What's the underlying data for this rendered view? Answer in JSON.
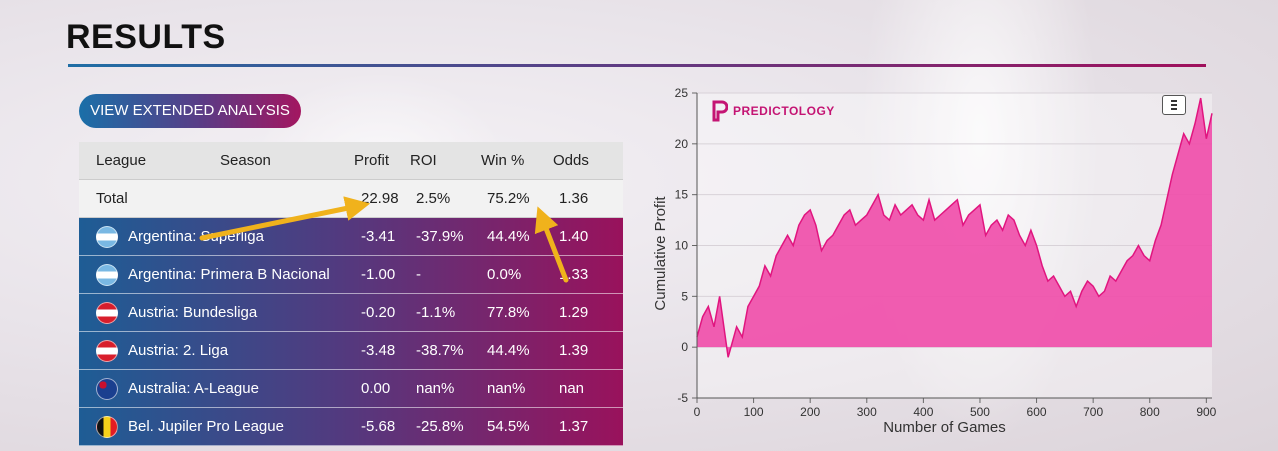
{
  "page": {
    "title": "RESULTS",
    "extended_button_label": "VIEW EXTENDED ANALYSIS"
  },
  "colors": {
    "accent_blue": "#1e5d95",
    "accent_magenta": "#99125c",
    "arrow": "#f0b21c",
    "chart_fill": "#f04ba8",
    "chart_line": "#e0157f"
  },
  "table": {
    "headers": {
      "league": "League",
      "season": "Season",
      "profit": "Profit",
      "roi": "ROI",
      "win": "Win %",
      "odds": "Odds"
    },
    "total": {
      "label": "Total",
      "profit": "22.98",
      "roi": "2.5%",
      "win": "75.2%",
      "odds": "1.36"
    },
    "rows": [
      {
        "flag": "flag-argentina",
        "league": "Argentina: Superliga",
        "profit": "-3.41",
        "roi": "-37.9%",
        "win": "44.4%",
        "odds": "1.40"
      },
      {
        "flag": "flag-argentina",
        "league": "Argentina: Primera B Nacional",
        "profit": "-1.00",
        "roi": "-",
        "win": "0.0%",
        "odds": "1.33"
      },
      {
        "flag": "flag-austria",
        "league": "Austria: Bundesliga",
        "profit": "-0.20",
        "roi": "-1.1%",
        "win": "77.8%",
        "odds": "1.29"
      },
      {
        "flag": "flag-austria",
        "league": "Austria: 2. Liga",
        "profit": "-3.48",
        "roi": "-38.7%",
        "win": "44.4%",
        "odds": "1.39"
      },
      {
        "flag": "flag-australia",
        "league": "Australia: A-League",
        "profit": "0.00",
        "roi": "nan%",
        "win": "nan%",
        "odds": "nan"
      },
      {
        "flag": "flag-belgium",
        "league": "Bel. Jupiler Pro League",
        "profit": "-5.68",
        "roi": "-25.8%",
        "win": "54.5%",
        "odds": "1.37"
      }
    ]
  },
  "chart": {
    "logo_text": "PREDICTOLOGY",
    "menu_icon": "hamburger-menu-icon"
  },
  "chart_data": {
    "type": "area",
    "xlabel": "Number of Games",
    "ylabel": "Cumulative Profit",
    "xlim": [
      0,
      910
    ],
    "ylim": [
      -5,
      25
    ],
    "xticks": [
      "0",
      "100",
      "200",
      "300",
      "400",
      "500",
      "600",
      "700",
      "800",
      "900"
    ],
    "yticks": [
      "-5",
      "0",
      "5",
      "10",
      "15",
      "20",
      "25"
    ],
    "grid": true,
    "x": [
      0,
      10,
      20,
      30,
      40,
      50,
      55,
      60,
      70,
      80,
      90,
      100,
      110,
      120,
      130,
      140,
      150,
      160,
      170,
      180,
      190,
      200,
      210,
      220,
      230,
      240,
      250,
      260,
      270,
      280,
      290,
      300,
      310,
      320,
      330,
      340,
      350,
      360,
      370,
      380,
      390,
      400,
      410,
      420,
      430,
      440,
      450,
      460,
      470,
      480,
      490,
      500,
      510,
      520,
      530,
      540,
      550,
      560,
      570,
      580,
      590,
      600,
      610,
      620,
      630,
      640,
      650,
      660,
      670,
      680,
      690,
      700,
      710,
      720,
      730,
      740,
      750,
      760,
      770,
      780,
      790,
      800,
      810,
      820,
      830,
      840,
      850,
      860,
      870,
      880,
      890,
      900,
      910
    ],
    "y": [
      1,
      3,
      4,
      2,
      5,
      1,
      -1,
      0,
      2,
      1,
      4,
      5,
      6,
      8,
      7,
      9,
      10,
      11,
      10,
      12,
      13,
      13.5,
      12,
      9.5,
      10.5,
      11,
      12,
      13,
      13.5,
      12,
      12.5,
      13,
      14,
      15,
      13,
      12.5,
      14,
      13,
      13.5,
      14,
      13,
      12.5,
      14.5,
      12.5,
      13,
      13.5,
      14,
      14.5,
      12,
      13,
      13.5,
      14,
      11,
      12,
      12.5,
      11.5,
      13,
      12.5,
      11,
      10,
      11.5,
      10,
      8,
      6.5,
      7,
      6,
      5,
      5.5,
      4,
      5.5,
      6.5,
      6,
      5,
      5.5,
      7,
      6.5,
      7.5,
      8.5,
      9,
      10,
      9,
      8.5,
      10.5,
      12,
      14.5,
      17,
      19,
      21,
      20,
      22,
      24.5,
      20.5,
      23
    ]
  }
}
